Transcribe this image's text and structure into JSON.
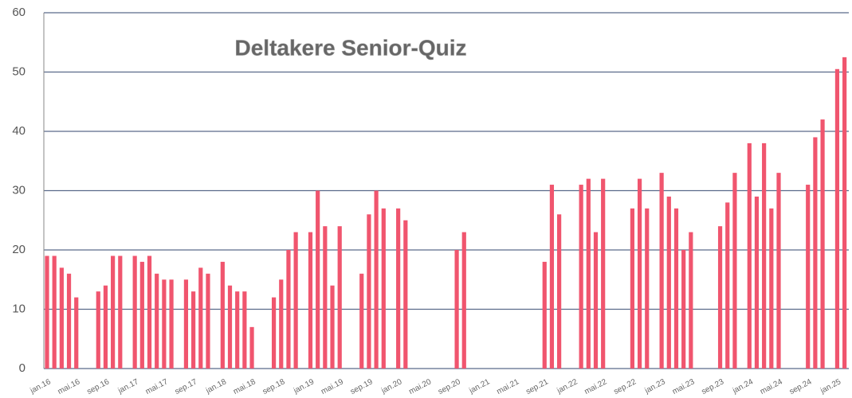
{
  "chart_data": {
    "type": "bar",
    "title": "Deltakere Senior-Quiz",
    "color": "#f0556e",
    "grid": true,
    "ylim": [
      0,
      60
    ],
    "yticks": [
      0,
      10,
      20,
      30,
      40,
      50,
      60
    ],
    "categories": [
      "jan.16",
      null,
      null,
      null,
      "mai.16",
      null,
      null,
      null,
      "sep.16",
      null,
      null,
      null,
      "jan.17",
      null,
      null,
      null,
      "mai.17",
      null,
      null,
      null,
      "sep.17",
      null,
      null,
      null,
      "jan.18",
      null,
      null,
      null,
      "mai.18",
      null,
      null,
      null,
      "sep.18",
      null,
      null,
      null,
      "jan.19",
      null,
      null,
      null,
      "mai.19",
      null,
      null,
      null,
      "sep.19",
      null,
      null,
      null,
      "jan.20",
      null,
      null,
      null,
      "mai.20",
      null,
      null,
      null,
      "sep.20",
      null,
      null,
      null,
      "jan.21",
      null,
      null,
      null,
      "mai.21",
      null,
      null,
      null,
      "sep.21",
      null,
      null,
      null,
      "jan.22",
      null,
      null,
      null,
      "mai.22",
      null,
      null,
      null,
      "sep.22",
      null,
      null,
      null,
      "jan.23",
      null,
      null,
      null,
      "mai.23",
      null,
      null,
      null,
      "sep.23",
      null,
      null,
      null,
      "jan.24",
      null,
      null,
      null,
      "mai.24",
      null,
      null,
      null,
      "sep.24",
      null,
      null,
      null,
      "jan.25",
      null
    ],
    "values": [
      19,
      19,
      17,
      16,
      12,
      null,
      null,
      13,
      14,
      19,
      19,
      null,
      19,
      18,
      19,
      16,
      15,
      15,
      null,
      15,
      13,
      17,
      16,
      null,
      18,
      14,
      13,
      13,
      7,
      null,
      null,
      12,
      15,
      20,
      23,
      null,
      23,
      30,
      24,
      14,
      24,
      null,
      null,
      16,
      26,
      30,
      27,
      null,
      27,
      25,
      null,
      null,
      null,
      null,
      null,
      null,
      20,
      23,
      null,
      null,
      null,
      null,
      null,
      null,
      null,
      null,
      null,
      null,
      18,
      31,
      26,
      null,
      null,
      31,
      32,
      23,
      32,
      null,
      null,
      null,
      27,
      32,
      27,
      null,
      33,
      29,
      27,
      20,
      23,
      null,
      null,
      null,
      24,
      28,
      33,
      null,
      38,
      29,
      38,
      27,
      33,
      null,
      null,
      null,
      31,
      39,
      42,
      null,
      50.5,
      52.5
    ]
  }
}
